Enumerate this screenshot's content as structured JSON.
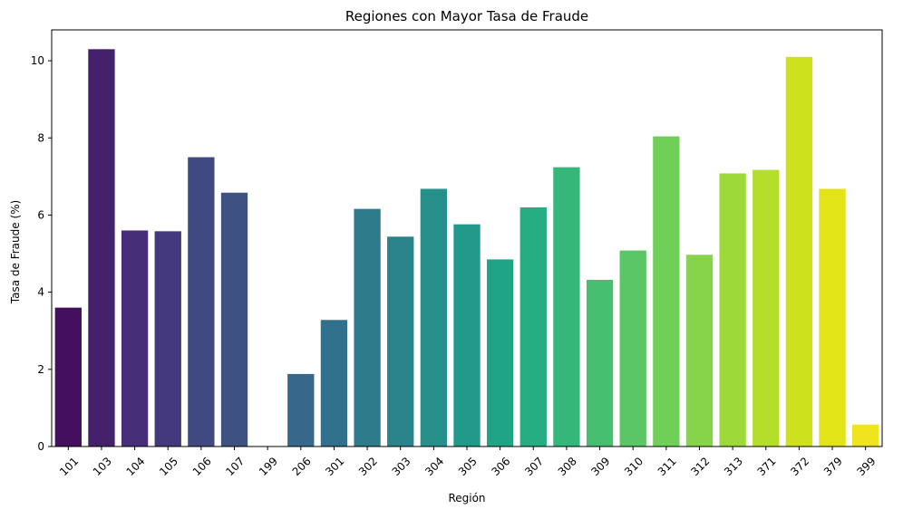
{
  "chart_data": {
    "type": "bar",
    "title": "Regiones con Mayor Tasa de Fraude",
    "xlabel": "Región",
    "ylabel": "Tasa de Fraude (%)",
    "categories": [
      "101",
      "103",
      "104",
      "105",
      "106",
      "107",
      "199",
      "206",
      "301",
      "302",
      "303",
      "304",
      "305",
      "306",
      "307",
      "308",
      "309",
      "310",
      "311",
      "312",
      "313",
      "371",
      "372",
      "379",
      "399"
    ],
    "values": [
      3.6,
      10.3,
      5.6,
      5.58,
      7.5,
      6.58,
      0.0,
      1.88,
      3.28,
      6.16,
      5.44,
      6.68,
      5.76,
      4.85,
      6.2,
      7.24,
      4.32,
      5.08,
      8.04,
      4.97,
      7.08,
      7.17,
      10.1,
      6.68,
      0.57
    ],
    "ylim": [
      0,
      10.8
    ],
    "yticks": [
      0,
      2,
      4,
      6,
      8,
      10
    ],
    "colormap": "viridis",
    "colors": [
      "#440f5e",
      "#46216b",
      "#472e78",
      "#45397e",
      "#404a81",
      "#3e5282",
      "#385e85",
      "#35688a",
      "#31708d",
      "#2d7b8b",
      "#2a838a",
      "#26908a",
      "#229a89",
      "#1fa486",
      "#26ad81",
      "#35b779",
      "#47bf70",
      "#5ac666",
      "#70cf57",
      "#86d449",
      "#9ed93a",
      "#b5de2b",
      "#cde11d",
      "#e2e418",
      "#f0e41e"
    ],
    "grid": false,
    "legend": "none"
  }
}
